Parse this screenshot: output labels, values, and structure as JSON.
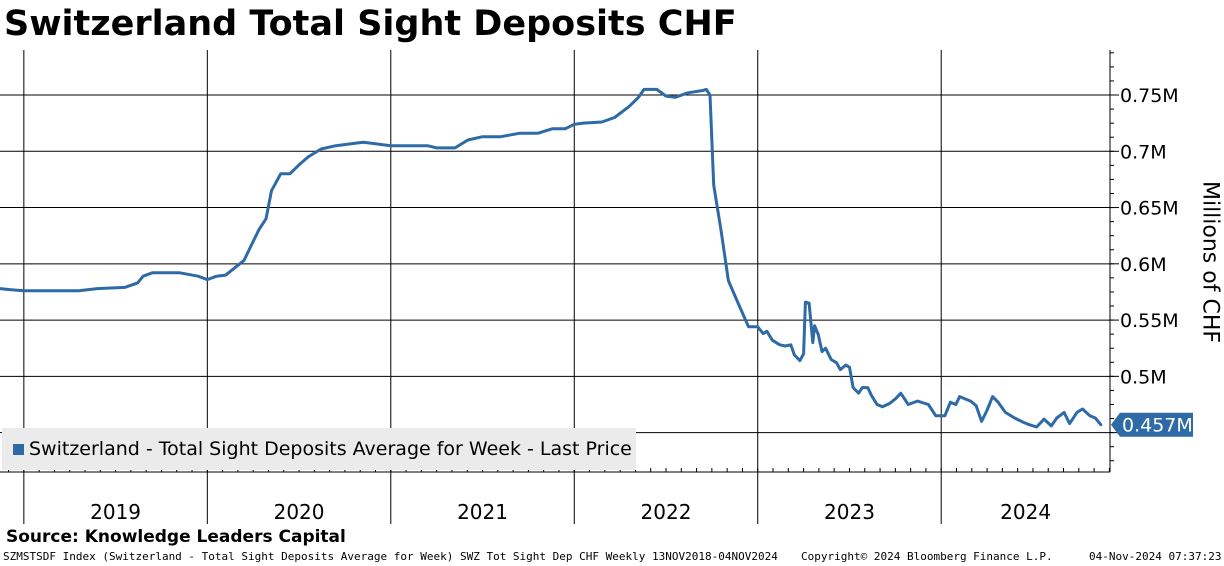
{
  "chart_data": {
    "type": "line",
    "title": "Switzerland Total Sight Deposits CHF",
    "ylabel": "Millions of CHF",
    "xlabel": "",
    "ylim": [
      0.415,
      0.79
    ],
    "xlim": [
      2018.87,
      2024.92
    ],
    "yticks": [
      {
        "value": 0.5,
        "label": "0.5M"
      },
      {
        "value": 0.55,
        "label": "0.55M"
      },
      {
        "value": 0.6,
        "label": "0.6M"
      },
      {
        "value": 0.65,
        "label": "0.65M"
      },
      {
        "value": 0.7,
        "label": "0.7M"
      },
      {
        "value": 0.75,
        "label": "0.75M"
      }
    ],
    "year_boundaries": [
      2019,
      2020,
      2021,
      2022,
      2023,
      2024
    ],
    "year_labels": [
      "2019",
      "2020",
      "2021",
      "2022",
      "2023",
      "2024"
    ],
    "series": [
      {
        "name": "Switzerland - Total Sight Deposits Average for Week - Last Price",
        "color": "#2e6aa5",
        "last_value": 0.457,
        "last_label": "0.457M",
        "points": [
          [
            2018.87,
            0.578
          ],
          [
            2018.93,
            0.577
          ],
          [
            2019.0,
            0.576
          ],
          [
            2019.1,
            0.576
          ],
          [
            2019.3,
            0.576
          ],
          [
            2019.4,
            0.578
          ],
          [
            2019.55,
            0.579
          ],
          [
            2019.62,
            0.583
          ],
          [
            2019.65,
            0.589
          ],
          [
            2019.7,
            0.592
          ],
          [
            2019.85,
            0.592
          ],
          [
            2019.95,
            0.589
          ],
          [
            2020.0,
            0.586
          ],
          [
            2020.05,
            0.589
          ],
          [
            2020.1,
            0.59
          ],
          [
            2020.2,
            0.603
          ],
          [
            2020.28,
            0.63
          ],
          [
            2020.32,
            0.64
          ],
          [
            2020.35,
            0.665
          ],
          [
            2020.4,
            0.68
          ],
          [
            2020.45,
            0.68
          ],
          [
            2020.5,
            0.688
          ],
          [
            2020.55,
            0.695
          ],
          [
            2020.62,
            0.702
          ],
          [
            2020.7,
            0.705
          ],
          [
            2020.8,
            0.707
          ],
          [
            2020.85,
            0.708
          ],
          [
            2020.9,
            0.707
          ],
          [
            2021.0,
            0.705
          ],
          [
            2021.1,
            0.705
          ],
          [
            2021.2,
            0.705
          ],
          [
            2021.25,
            0.703
          ],
          [
            2021.35,
            0.703
          ],
          [
            2021.42,
            0.71
          ],
          [
            2021.5,
            0.713
          ],
          [
            2021.6,
            0.713
          ],
          [
            2021.7,
            0.716
          ],
          [
            2021.8,
            0.716
          ],
          [
            2021.88,
            0.72
          ],
          [
            2021.95,
            0.72
          ],
          [
            2022.0,
            0.724
          ],
          [
            2022.05,
            0.725
          ],
          [
            2022.15,
            0.726
          ],
          [
            2022.22,
            0.73
          ],
          [
            2022.3,
            0.74
          ],
          [
            2022.35,
            0.748
          ],
          [
            2022.38,
            0.755
          ],
          [
            2022.45,
            0.755
          ],
          [
            2022.5,
            0.749
          ],
          [
            2022.55,
            0.748
          ],
          [
            2022.62,
            0.752
          ],
          [
            2022.7,
            0.754
          ],
          [
            2022.72,
            0.755
          ],
          [
            2022.74,
            0.75
          ],
          [
            2022.76,
            0.67
          ],
          [
            2022.8,
            0.63
          ],
          [
            2022.84,
            0.585
          ],
          [
            2022.88,
            0.57
          ],
          [
            2022.92,
            0.555
          ],
          [
            2022.95,
            0.544
          ],
          [
            2023.0,
            0.544
          ],
          [
            2023.03,
            0.538
          ],
          [
            2023.05,
            0.54
          ],
          [
            2023.08,
            0.532
          ],
          [
            2023.12,
            0.528
          ],
          [
            2023.15,
            0.527
          ],
          [
            2023.18,
            0.528
          ],
          [
            2023.2,
            0.519
          ],
          [
            2023.23,
            0.514
          ],
          [
            2023.25,
            0.52
          ],
          [
            2023.26,
            0.566
          ],
          [
            2023.28,
            0.565
          ],
          [
            2023.3,
            0.53
          ],
          [
            2023.31,
            0.545
          ],
          [
            2023.33,
            0.537
          ],
          [
            2023.35,
            0.522
          ],
          [
            2023.37,
            0.525
          ],
          [
            2023.4,
            0.515
          ],
          [
            2023.43,
            0.512
          ],
          [
            2023.45,
            0.506
          ],
          [
            2023.48,
            0.51
          ],
          [
            2023.5,
            0.508
          ],
          [
            2023.52,
            0.49
          ],
          [
            2023.55,
            0.485
          ],
          [
            2023.57,
            0.49
          ],
          [
            2023.6,
            0.49
          ],
          [
            2023.62,
            0.483
          ],
          [
            2023.65,
            0.475
          ],
          [
            2023.68,
            0.473
          ],
          [
            2023.72,
            0.476
          ],
          [
            2023.75,
            0.48
          ],
          [
            2023.78,
            0.485
          ],
          [
            2023.82,
            0.475
          ],
          [
            2023.87,
            0.478
          ],
          [
            2023.93,
            0.475
          ],
          [
            2023.97,
            0.465
          ],
          [
            2024.02,
            0.465
          ],
          [
            2024.05,
            0.477
          ],
          [
            2024.08,
            0.475
          ],
          [
            2024.1,
            0.482
          ],
          [
            2024.13,
            0.48
          ],
          [
            2024.16,
            0.478
          ],
          [
            2024.19,
            0.474
          ],
          [
            2024.22,
            0.46
          ],
          [
            2024.25,
            0.47
          ],
          [
            2024.28,
            0.482
          ],
          [
            2024.31,
            0.477
          ],
          [
            2024.35,
            0.468
          ],
          [
            2024.4,
            0.463
          ],
          [
            2024.45,
            0.459
          ],
          [
            2024.48,
            0.457
          ],
          [
            2024.52,
            0.455
          ],
          [
            2024.56,
            0.462
          ],
          [
            2024.6,
            0.456
          ],
          [
            2024.63,
            0.463
          ],
          [
            2024.67,
            0.468
          ],
          [
            2024.7,
            0.458
          ],
          [
            2024.74,
            0.468
          ],
          [
            2024.77,
            0.471
          ],
          [
            2024.81,
            0.465
          ],
          [
            2024.84,
            0.463
          ],
          [
            2024.87,
            0.457
          ]
        ]
      }
    ]
  },
  "source_label": "Source: Knowledge Leaders Capital",
  "footer": {
    "ticker": "SZMSTSDF Index (Switzerland - Total Sight Deposits Average for Week) SWZ Tot Sight Dep CHF  Weekly 13NOV2018-04NOV2024",
    "copyright": "Copyright© 2024 Bloomberg Finance L.P.",
    "timestamp": "04-Nov-2024 07:37:23"
  },
  "colors": {
    "series": "#2e6aa5",
    "legend_bg": "#ebebeb",
    "grid": "#000000"
  }
}
